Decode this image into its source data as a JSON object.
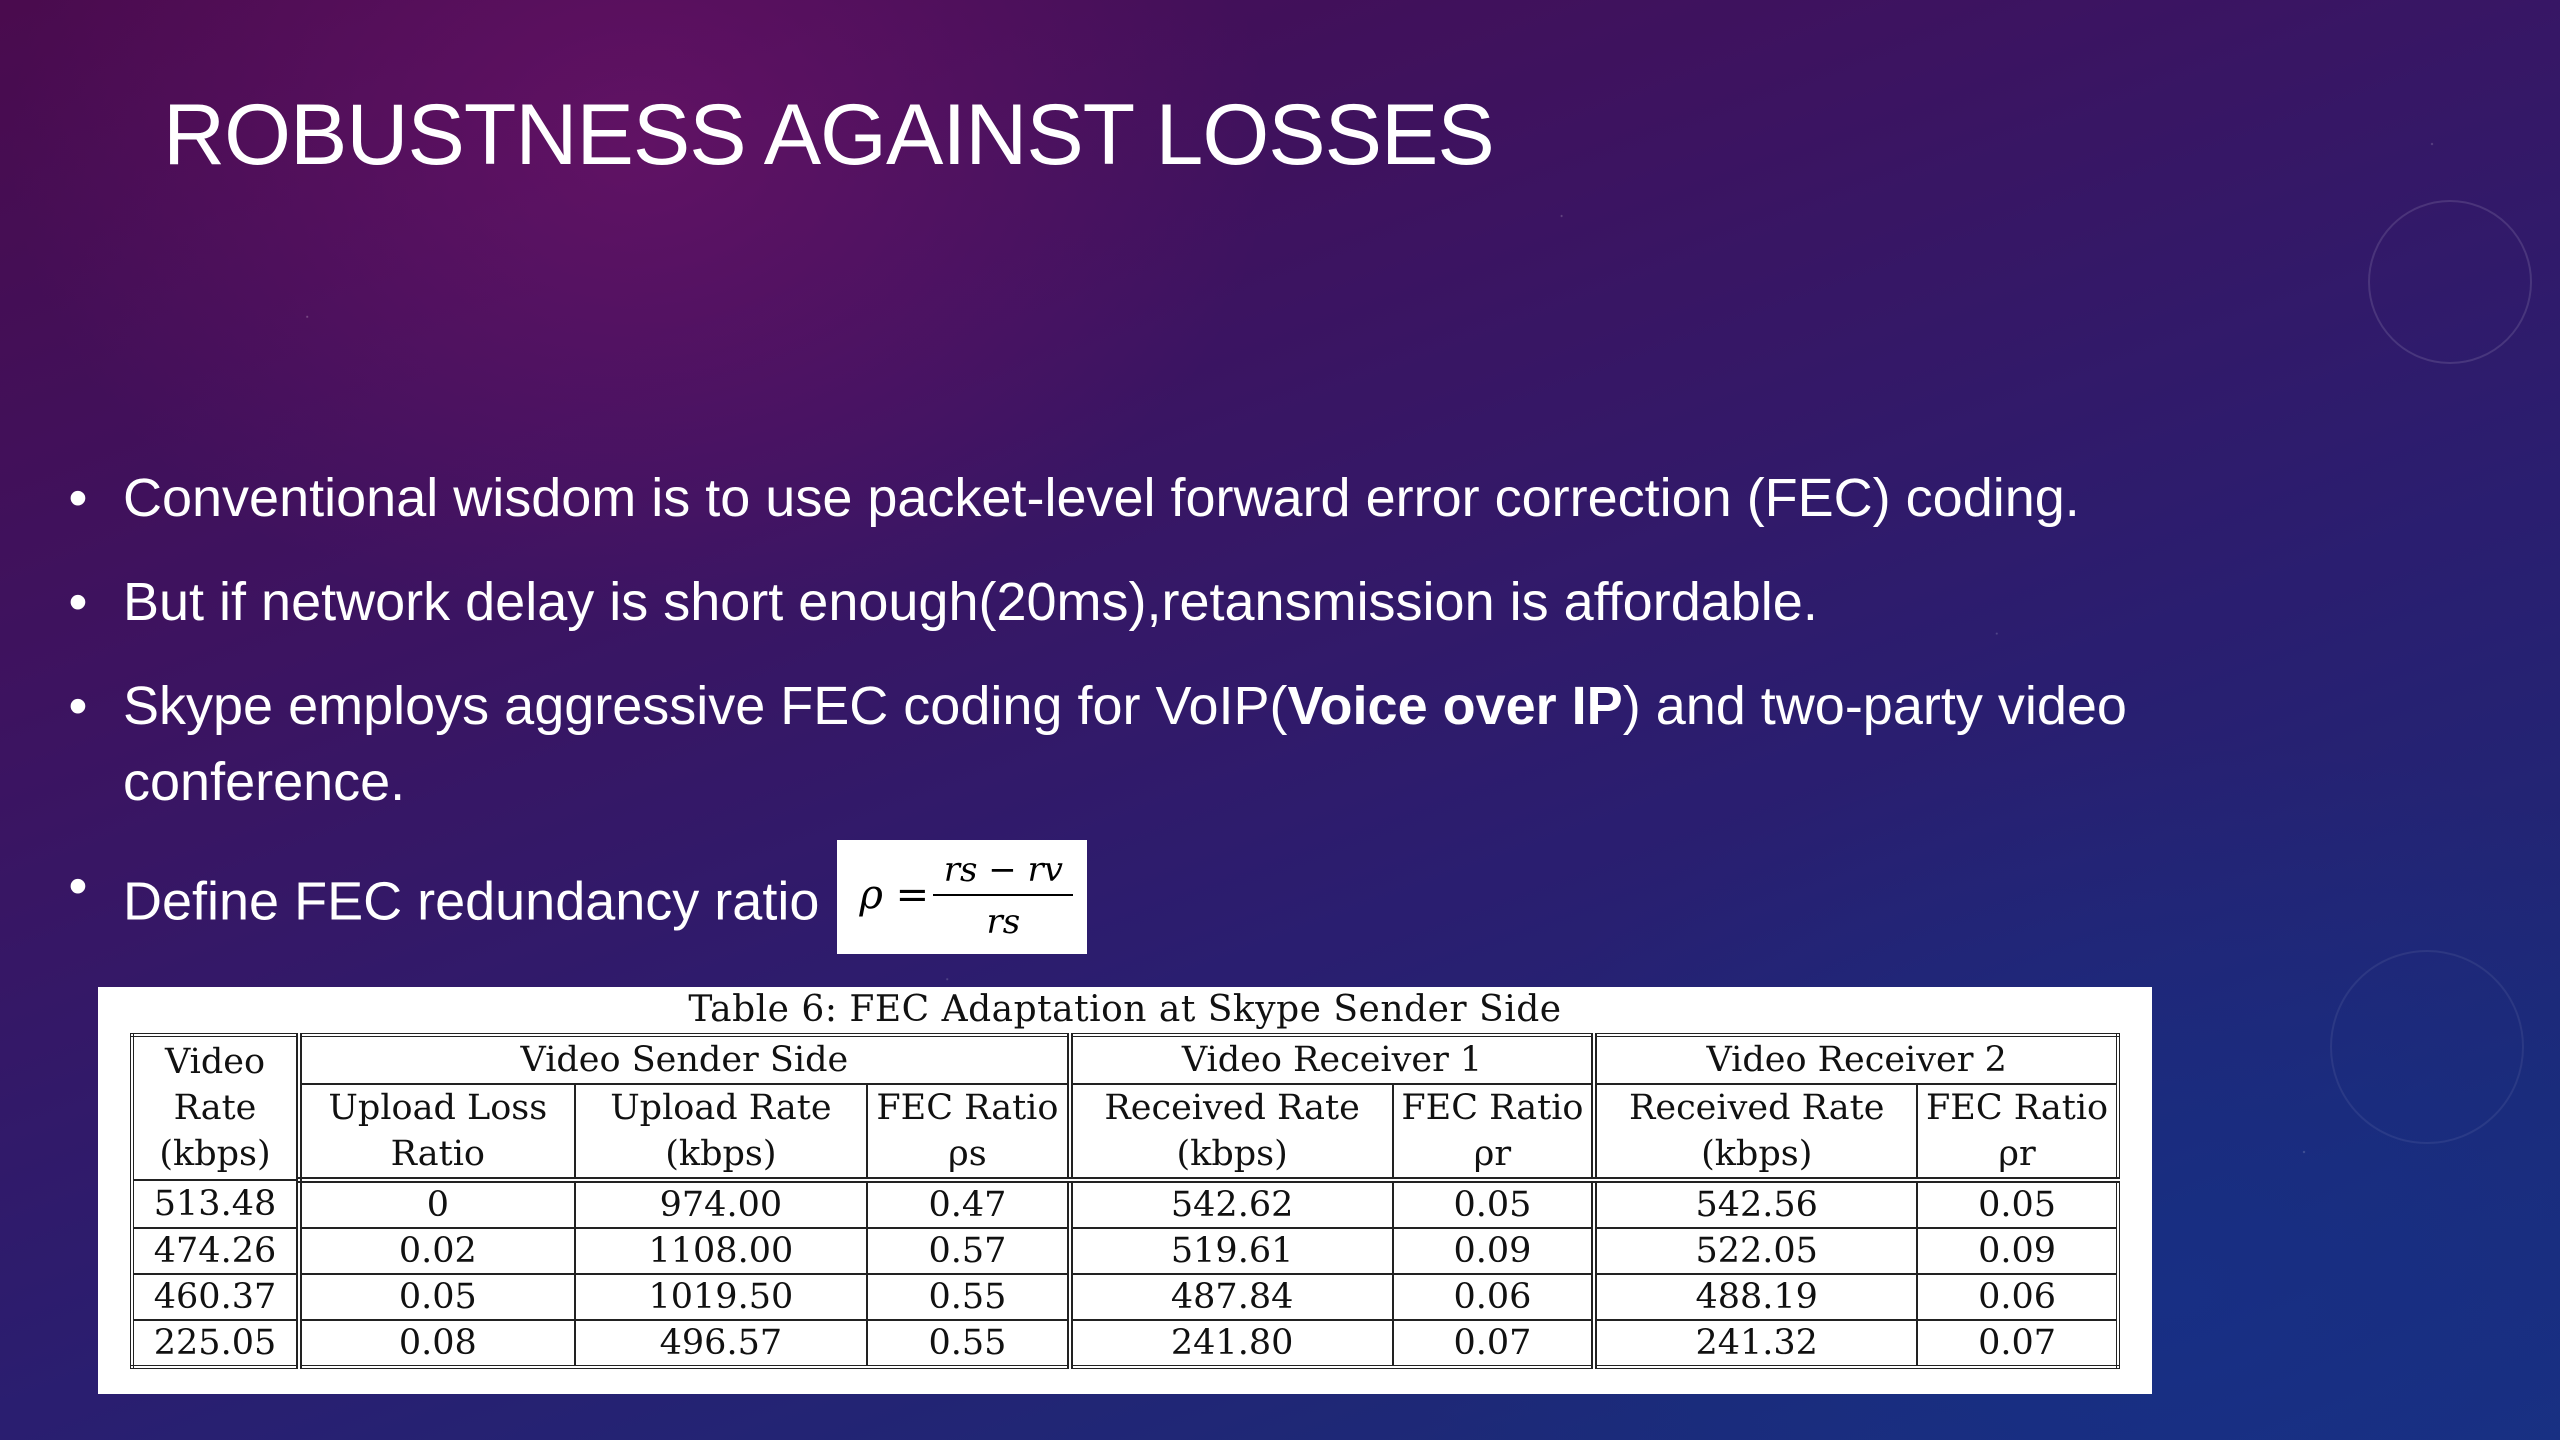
{
  "slide": {
    "title": "ROBUSTNESS AGAINST LOSSES"
  },
  "bullets": {
    "b1": "Conventional wisdom is to use packet-level forward error correction (FEC) coding.",
    "b2": "But if network delay is short enough(20ms),retansmission is affordable.",
    "b3_pre": "Skype employs aggressive FEC coding for VoIP(",
    "b3_bold": "Voice over IP",
    "b3_post": ") and two-party video conference.",
    "b4": "Define FEC redundancy ratio"
  },
  "formula": {
    "lhs": "ρ =",
    "numerator": "rs − rv",
    "denominator": "rs"
  },
  "table": {
    "caption": "Table 6: FEC Adaptation at Skype Sender Side",
    "group_headers": {
      "video_rate": "Video Rate (kbps)",
      "sender": "Video Sender Side",
      "receiver1": "Video Receiver 1",
      "receiver2": "Video Receiver 2"
    },
    "columns": {
      "upload_loss": "Upload Loss Ratio",
      "upload_rate": "Upload Rate (kbps)",
      "fec_s": "FEC Ratio ρs",
      "recv_rate_1": "Received Rate (kbps)",
      "fec_r1": "FEC Ratio ρr",
      "recv_rate_2": "Received Rate (kbps)",
      "fec_r2": "FEC Ratio ρr"
    },
    "rows": [
      [
        "513.48",
        "0",
        "974.00",
        "0.47",
        "542.62",
        "0.05",
        "542.56",
        "0.05"
      ],
      [
        "474.26",
        "0.02",
        "1108.00",
        "0.57",
        "519.61",
        "0.09",
        "522.05",
        "0.09"
      ],
      [
        "460.37",
        "0.05",
        "1019.50",
        "0.55",
        "487.84",
        "0.06",
        "488.19",
        "0.06"
      ],
      [
        "225.05",
        "0.08",
        "496.57",
        "0.55",
        "241.80",
        "0.07",
        "241.32",
        "0.07"
      ]
    ]
  }
}
